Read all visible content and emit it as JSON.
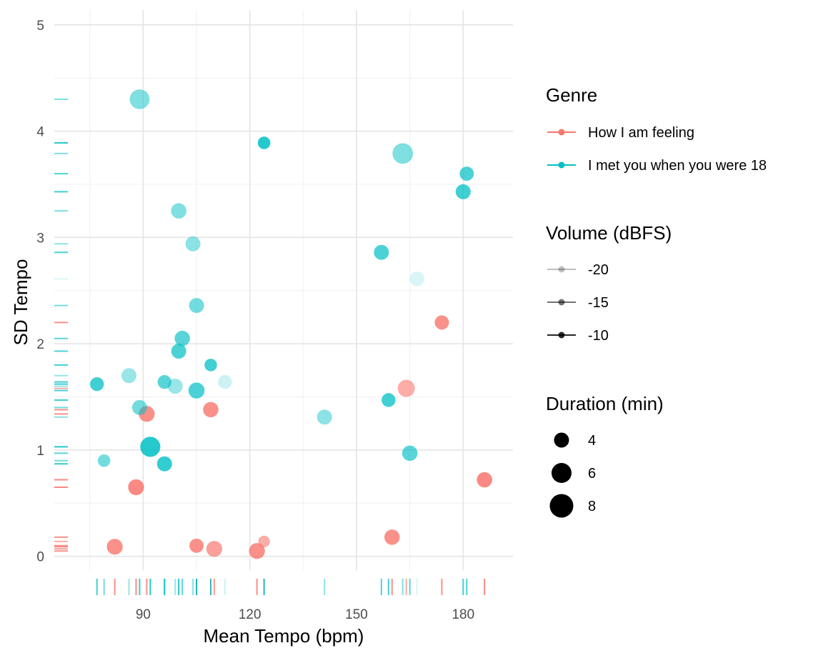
{
  "chart_data": {
    "type": "scatter",
    "title": "",
    "xlabel": "Mean Tempo (bpm)",
    "ylabel": "SD Tempo",
    "xlim": [
      65,
      194
    ],
    "ylim": [
      -0.13,
      5.14
    ],
    "x_ticks": [
      90,
      120,
      150,
      180
    ],
    "y_ticks": [
      0,
      1,
      2,
      3,
      4,
      5
    ],
    "x_tick_labels": [
      "90",
      "120",
      "150",
      "180"
    ],
    "y_tick_labels": [
      "0",
      "1",
      "2",
      "3",
      "4",
      "5"
    ],
    "grid": true,
    "rug": true,
    "legend_position": "right",
    "colors": {
      "How I am feeling": "#F8766D",
      "I met you when you were 18": "#00BFC4"
    },
    "legends": {
      "genre": {
        "title": "Genre",
        "items": [
          "How I am feeling",
          "I met you when you were 18"
        ]
      },
      "volume": {
        "title": "Volume (dBFS)",
        "items": [
          "-20",
          "-15",
          "-10"
        ],
        "alphas": [
          0.25,
          0.55,
          0.85
        ]
      },
      "duration": {
        "title": "Duration (min)",
        "items": [
          "4",
          "6",
          "8"
        ],
        "values": [
          4,
          6,
          8
        ]
      }
    },
    "series": [
      {
        "name": "How I am feeling",
        "points": [
          {
            "x": 91,
            "y": 1.34,
            "duration": 4.5,
            "alpha": 0.8
          },
          {
            "x": 109,
            "y": 1.38,
            "duration": 4.2,
            "alpha": 0.8
          },
          {
            "x": 164,
            "y": 1.58,
            "duration": 5.2,
            "alpha": 0.6
          },
          {
            "x": 174,
            "y": 2.2,
            "duration": 3.6,
            "alpha": 0.8
          },
          {
            "x": 88,
            "y": 0.65,
            "duration": 4.5,
            "alpha": 0.85
          },
          {
            "x": 186,
            "y": 0.72,
            "duration": 4.2,
            "alpha": 0.85
          },
          {
            "x": 82,
            "y": 0.09,
            "duration": 4.5,
            "alpha": 0.8
          },
          {
            "x": 105,
            "y": 0.1,
            "duration": 3.6,
            "alpha": 0.8
          },
          {
            "x": 110,
            "y": 0.07,
            "duration": 4.5,
            "alpha": 0.7
          },
          {
            "x": 122,
            "y": 0.05,
            "duration": 4.5,
            "alpha": 0.8
          },
          {
            "x": 124,
            "y": 0.14,
            "duration": 2.4,
            "alpha": 0.6
          },
          {
            "x": 160,
            "y": 0.18,
            "duration": 4.2,
            "alpha": 0.8
          }
        ]
      },
      {
        "name": "I met you when you were 18",
        "points": [
          {
            "x": 89,
            "y": 4.3,
            "duration": 7.0,
            "alpha": 0.5
          },
          {
            "x": 124,
            "y": 3.89,
            "duration": 2.8,
            "alpha": 0.85
          },
          {
            "x": 163,
            "y": 3.79,
            "duration": 7.5,
            "alpha": 0.5
          },
          {
            "x": 181,
            "y": 3.6,
            "duration": 3.6,
            "alpha": 0.7
          },
          {
            "x": 180,
            "y": 3.43,
            "duration": 4.0,
            "alpha": 0.75
          },
          {
            "x": 100,
            "y": 3.25,
            "duration": 4.2,
            "alpha": 0.5
          },
          {
            "x": 104,
            "y": 2.94,
            "duration": 4.0,
            "alpha": 0.45
          },
          {
            "x": 157,
            "y": 2.86,
            "duration": 4.0,
            "alpha": 0.7
          },
          {
            "x": 167,
            "y": 2.61,
            "duration": 3.8,
            "alpha": 0.15
          },
          {
            "x": 105,
            "y": 2.36,
            "duration": 4.0,
            "alpha": 0.55
          },
          {
            "x": 101,
            "y": 2.05,
            "duration": 4.2,
            "alpha": 0.65
          },
          {
            "x": 100,
            "y": 1.93,
            "duration": 4.0,
            "alpha": 0.7
          },
          {
            "x": 109,
            "y": 1.8,
            "duration": 2.8,
            "alpha": 0.75
          },
          {
            "x": 86,
            "y": 1.7,
            "duration": 4.0,
            "alpha": 0.4
          },
          {
            "x": 77,
            "y": 1.62,
            "duration": 3.4,
            "alpha": 0.75
          },
          {
            "x": 96,
            "y": 1.64,
            "duration": 3.4,
            "alpha": 0.65
          },
          {
            "x": 99,
            "y": 1.6,
            "duration": 4.0,
            "alpha": 0.4
          },
          {
            "x": 105,
            "y": 1.56,
            "duration": 4.6,
            "alpha": 0.7
          },
          {
            "x": 113,
            "y": 1.64,
            "duration": 3.4,
            "alpha": 0.2
          },
          {
            "x": 89,
            "y": 1.4,
            "duration": 4.0,
            "alpha": 0.55
          },
          {
            "x": 159,
            "y": 1.47,
            "duration": 3.4,
            "alpha": 0.75
          },
          {
            "x": 141,
            "y": 1.31,
            "duration": 4.0,
            "alpha": 0.45
          },
          {
            "x": 92,
            "y": 1.03,
            "duration": 7.2,
            "alpha": 0.85
          },
          {
            "x": 79,
            "y": 0.9,
            "duration": 2.8,
            "alpha": 0.55
          },
          {
            "x": 96,
            "y": 0.87,
            "duration": 4.0,
            "alpha": 0.8
          },
          {
            "x": 165,
            "y": 0.97,
            "duration": 4.2,
            "alpha": 0.65
          }
        ]
      }
    ]
  }
}
